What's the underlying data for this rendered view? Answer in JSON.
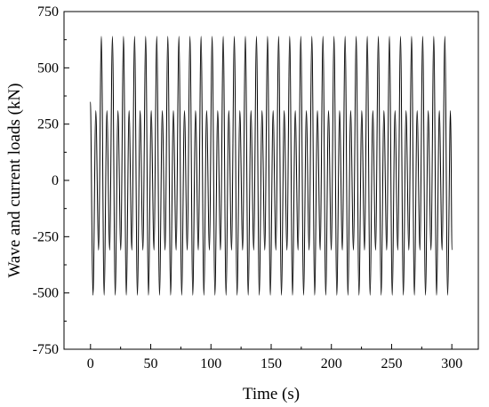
{
  "chart_data": {
    "type": "line",
    "xlabel": "Time (s)",
    "ylabel": "Wave and current loads (kN)",
    "xlim": [
      -22,
      322
    ],
    "ylim": [
      -750,
      750
    ],
    "x_ticks": [
      0,
      50,
      100,
      150,
      200,
      250,
      300
    ],
    "y_ticks": [
      -750,
      -500,
      -250,
      0,
      250,
      500,
      750
    ],
    "grid": false,
    "legend": "none",
    "line_color": "#000000",
    "series": [
      {
        "period_s": 9.2,
        "x_range": [
          0,
          300
        ],
        "start_value": 350,
        "end_value": -310,
        "upper_peak_high": 640,
        "upper_peak_low": 310,
        "trough_low": -510,
        "trough_high": -310,
        "first_high_peak_time": 9.0
      }
    ]
  }
}
